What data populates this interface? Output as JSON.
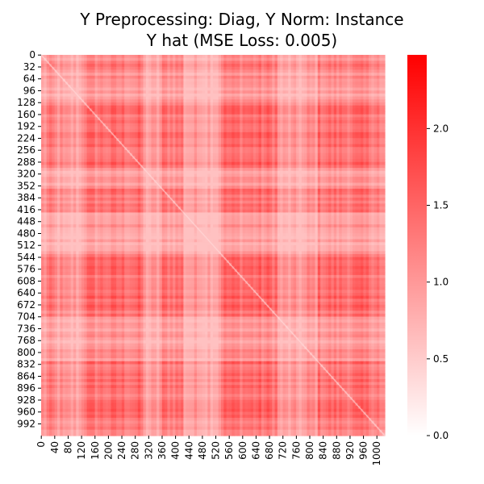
{
  "chart_data": {
    "type": "heatmap",
    "title": "Y Preprocessing: Diag, Y Norm: Instance",
    "subtitle": "Y hat (MSE Loss: 0.005)",
    "n": 1024,
    "x_tick_labels": [
      "0",
      "40",
      "80",
      "120",
      "160",
      "200",
      "240",
      "280",
      "320",
      "360",
      "400",
      "440",
      "480",
      "520",
      "560",
      "600",
      "640",
      "680",
      "720",
      "760",
      "800",
      "840",
      "880",
      "920",
      "960",
      "1000"
    ],
    "y_tick_labels": [
      "0",
      "32",
      "64",
      "96",
      "128",
      "160",
      "192",
      "224",
      "256",
      "288",
      "320",
      "352",
      "384",
      "416",
      "448",
      "480",
      "512",
      "544",
      "576",
      "608",
      "640",
      "672",
      "704",
      "736",
      "768",
      "800",
      "832",
      "864",
      "896",
      "928",
      "960",
      "992"
    ],
    "colorbar": {
      "min": 0.0,
      "max": 2.48,
      "ticks": [
        "0.0",
        "0.5",
        "1.0",
        "1.5",
        "2.0"
      ],
      "low_color": "#ffffff",
      "high_color": "#ff0000"
    },
    "value_range": [
      0.7,
      1.9
    ],
    "dominant_pattern": "block-structured symmetric matrix with a faint lighter diagonal",
    "grid": false
  }
}
